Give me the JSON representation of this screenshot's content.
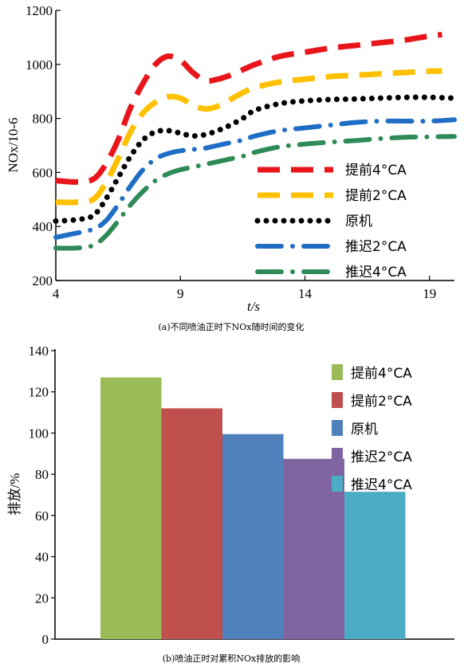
{
  "chart_data": [
    {
      "type": "line",
      "xlabel": "t/s",
      "ylabel": "NOx/10-6",
      "xlim": [
        4,
        20
      ],
      "ylim": [
        200,
        1200
      ],
      "xticks": [
        "4",
        "9",
        "14",
        "19"
      ],
      "yticks": [
        "200",
        "400",
        "600",
        "800",
        "1000",
        "1200"
      ],
      "legend_position": "bottom-right",
      "caption": "(a)不同喷油正时下NOx随时间的变化",
      "series": [
        {
          "name": "提前4°CA",
          "color": "#e8161b",
          "style": "long-dash",
          "x": [
            4,
            4.8,
            5.5,
            6,
            6.5,
            7,
            7.5,
            8,
            8.5,
            9,
            9.5,
            10,
            10.5,
            11,
            11.5,
            12,
            13,
            14,
            15,
            16,
            17,
            18,
            19,
            19.5
          ],
          "y": [
            570,
            565,
            575,
            630,
            720,
            840,
            930,
            1000,
            1030,
            1015,
            970,
            940,
            945,
            960,
            980,
            1000,
            1030,
            1045,
            1060,
            1070,
            1080,
            1090,
            1105,
            1110
          ]
        },
        {
          "name": "提前2°CA",
          "color": "#ffc000",
          "style": "long-dash",
          "x": [
            4,
            4.8,
            5.5,
            6,
            6.5,
            7,
            7.5,
            8,
            8.5,
            9,
            9.5,
            10,
            10.5,
            11,
            11.5,
            12,
            13,
            14,
            15,
            16,
            17,
            18,
            19,
            19.5
          ],
          "y": [
            490,
            490,
            500,
            560,
            650,
            750,
            820,
            860,
            880,
            875,
            850,
            835,
            845,
            870,
            895,
            915,
            935,
            945,
            955,
            960,
            965,
            970,
            975,
            975
          ]
        },
        {
          "name": "原机",
          "color": "#000000",
          "style": "dotted",
          "x": [
            4,
            4.8,
            5.5,
            6,
            6.5,
            7,
            7.5,
            8,
            8.5,
            9,
            9.5,
            10,
            10.5,
            11,
            11.5,
            12,
            13,
            14,
            15,
            16,
            17,
            18,
            19,
            20
          ],
          "y": [
            420,
            425,
            440,
            500,
            580,
            660,
            720,
            750,
            755,
            745,
            735,
            740,
            755,
            775,
            800,
            830,
            855,
            865,
            870,
            872,
            875,
            878,
            878,
            875
          ]
        },
        {
          "name": "推迟2°CA",
          "color": "#1f6dc4",
          "style": "dash-dot",
          "x": [
            4,
            4.8,
            5.5,
            6,
            6.5,
            7,
            7.5,
            8,
            8.5,
            9,
            9.5,
            10,
            10.5,
            11,
            11.5,
            12,
            13,
            14,
            15,
            16,
            17,
            18,
            19,
            20
          ],
          "y": [
            360,
            375,
            390,
            420,
            480,
            550,
            610,
            650,
            670,
            680,
            685,
            690,
            700,
            710,
            720,
            735,
            755,
            765,
            775,
            785,
            790,
            790,
            790,
            795
          ]
        },
        {
          "name": "推迟4°CA",
          "color": "#2e8b57",
          "style": "dash-dot",
          "x": [
            4,
            4.8,
            5.5,
            6,
            6.5,
            7,
            7.5,
            8,
            8.5,
            9,
            9.5,
            10,
            10.5,
            11,
            11.5,
            12,
            13,
            14,
            15,
            16,
            17,
            18,
            19,
            20
          ],
          "y": [
            320,
            320,
            330,
            365,
            420,
            480,
            530,
            570,
            595,
            610,
            620,
            630,
            640,
            650,
            660,
            675,
            695,
            705,
            712,
            718,
            725,
            730,
            732,
            733
          ]
        }
      ]
    },
    {
      "type": "bar",
      "ylabel": "排放/%",
      "ylim": [
        0,
        140
      ],
      "yticks": [
        "0",
        "20",
        "40",
        "60",
        "80",
        "100",
        "120",
        "140"
      ],
      "legend_position": "right",
      "caption": "(b)喷油正时对累积NOx排放的影响",
      "categories": [
        "提前4°CA",
        "提前2°CA",
        "原机",
        "推迟2°CA",
        "推迟4°CA"
      ],
      "values": [
        127,
        112,
        99.5,
        87.5,
        71.5
      ],
      "colors": [
        "#9bbb59",
        "#c0504d",
        "#4f81bd",
        "#8064a2",
        "#4bacc6"
      ]
    }
  ]
}
